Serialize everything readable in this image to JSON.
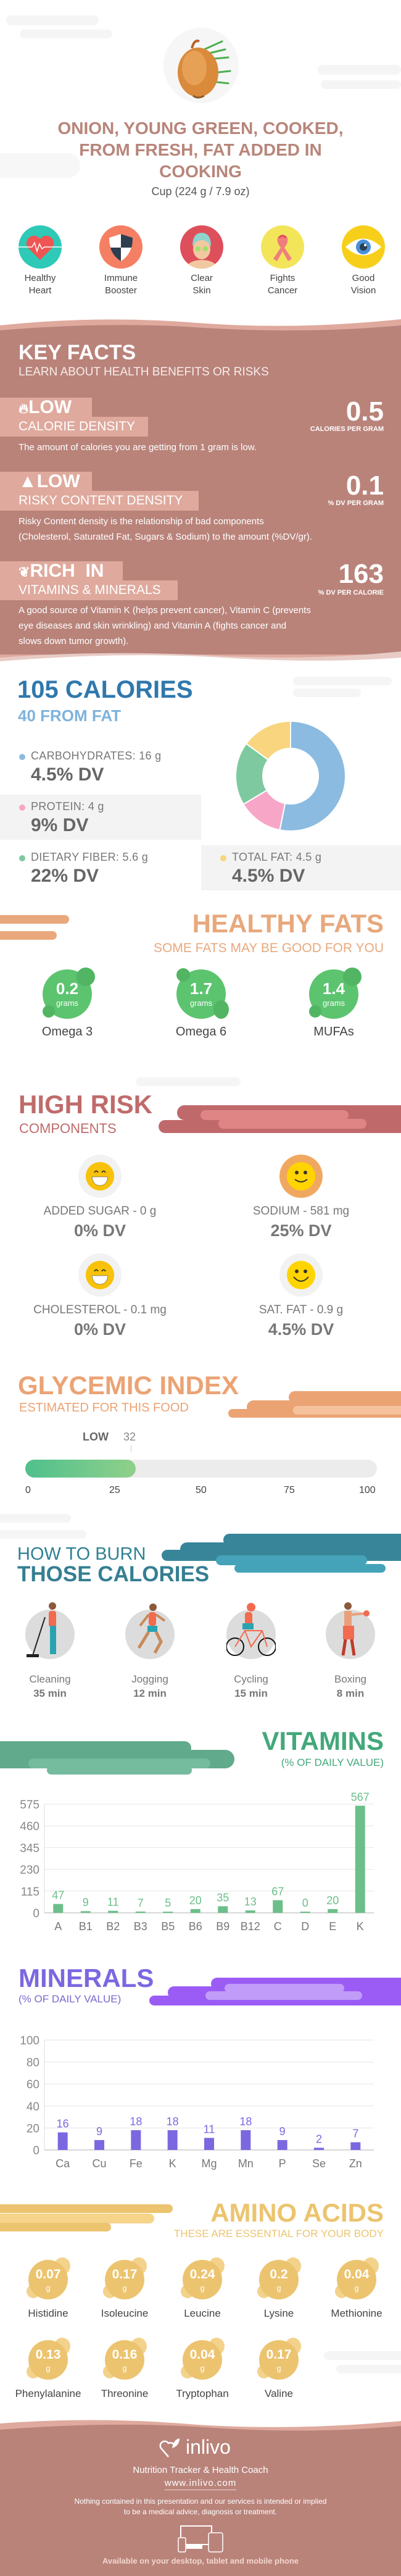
{
  "header": {
    "title_lines": [
      "ONION, YOUNG GREEN, COOKED,",
      "FROM FRESH, FAT ADDED IN",
      "COOKING"
    ],
    "serving": "Cup (224 g / 7.9 oz)"
  },
  "benefits": [
    {
      "line1": "Healthy",
      "line2": "Heart",
      "icon": "heart-icon"
    },
    {
      "line1": "Immune",
      "line2": "Booster",
      "icon": "shield-icon"
    },
    {
      "line1": "Clear",
      "line2": "Skin",
      "icon": "face-mask-icon"
    },
    {
      "line1": "Fights",
      "line2": "Cancer",
      "icon": "ribbon-icon"
    },
    {
      "line1": "Good",
      "line2": "Vision",
      "icon": "eye-icon"
    }
  ],
  "key_facts": {
    "title": "KEY FACTS",
    "subtitle": "LEARN ABOUT HEALTH BENEFITS OR RISKS",
    "items": [
      {
        "level": "LOW",
        "category": "CALORIE DENSITY",
        "value": "0.5",
        "unit": "CALORIES PER GRAM",
        "icon": "flame-icon",
        "description": [
          "The amount of calories you are getting from 1 gram is low."
        ]
      },
      {
        "level": "LOW",
        "category": "RISKY CONTENT DENSITY",
        "value": "0.1",
        "unit": "% DV PER GRAM",
        "icon": "warning-icon",
        "description": [
          "Risky Content density is the relationship of bad components",
          "(Cholesterol, Saturated Fat, Sugars & Sodium) to the amount (%DV/gr)."
        ]
      },
      {
        "level": "RICH  IN",
        "category": "VITAMINS & MINERALS",
        "value": "163",
        "unit": "% DV PER CALORIE",
        "icon": "leaf-icon",
        "description": [
          "A good source of Vitamin K (helps prevent cancer), Vitamin C (prevents",
          "eye diseases and skin wrinkling) and Vitamin A (fights cancer and",
          "slows down tumor growth)."
        ]
      }
    ]
  },
  "calories": {
    "title": "105 CALORIES",
    "from_fat": "40 FROM FAT",
    "macros": [
      {
        "label": "CARBOHYDRATES: 16 g",
        "dv": "4.5% DV",
        "color": "#8bbbe0"
      },
      {
        "label": "PROTEIN: 4 g",
        "dv": "9% DV",
        "color": "#f7a6c8"
      },
      {
        "label": "DIETARY FIBER: 5.6 g",
        "dv": "22% DV",
        "color": "#7ec9a0"
      },
      {
        "label": "TOTAL FAT: 4.5 g",
        "dv": "4.5% DV",
        "color": "#f8d57e"
      }
    ]
  },
  "healthy_fats": {
    "title": "HEALTHY FATS",
    "subtitle": "SOME FATS MAY BE GOOD FOR YOU",
    "items": [
      {
        "value": "0.2",
        "unit": "grams",
        "name": "Omega 3"
      },
      {
        "value": "1.7",
        "unit": "grams",
        "name": "Omega 6"
      },
      {
        "value": "1.4",
        "unit": "grams",
        "name": "MUFAs"
      }
    ]
  },
  "high_risk": {
    "title": "HIGH RISK",
    "subtitle": "COMPONENTS",
    "items": [
      {
        "label": "ADDED SUGAR - 0 g",
        "dv": "0% DV",
        "icon": "grinning-face-icon"
      },
      {
        "label": "SODIUM - 581 mg",
        "dv": "25% DV",
        "icon": "smiling-face-icon"
      },
      {
        "label": "CHOLESTEROL - 0.1 mg",
        "dv": "0% DV",
        "icon": "grinning-face-icon"
      },
      {
        "label": "SAT. FAT - 0.9 g",
        "dv": "4.5% DV",
        "icon": "smiling-face-icon"
      }
    ]
  },
  "glycemic": {
    "title": "GLYCEMIC INDEX",
    "subtitle": "ESTIMATED FOR THIS FOOD",
    "level": "LOW",
    "value": 32,
    "value_label": "32",
    "scale": [
      "0",
      "25",
      "50",
      "75",
      "100"
    ]
  },
  "burn": {
    "title_top": "HOW TO BURN",
    "title_bottom": "THOSE CALORIES",
    "activities": [
      {
        "name": "Cleaning",
        "time": "35 min"
      },
      {
        "name": "Jogging",
        "time": "12 min"
      },
      {
        "name": "Cycling",
        "time": "15 min"
      },
      {
        "name": "Boxing",
        "time": "8 min"
      }
    ]
  },
  "vitamins": {
    "title": "VITAMINS",
    "subtitle": "(% OF DAILY VALUE)"
  },
  "minerals": {
    "title": "MINERALS",
    "subtitle": "(% OF DAILY VALUE)"
  },
  "amino_acids": {
    "title": "AMINO ACIDS",
    "subtitle": "THESE ARE ESSENTIAL FOR YOUR BODY",
    "items": [
      {
        "value": "0.07",
        "unit": "g",
        "name": "Histidine"
      },
      {
        "value": "0.17",
        "unit": "g",
        "name": "Isoleucine"
      },
      {
        "value": "0.24",
        "unit": "g",
        "name": "Leucine"
      },
      {
        "value": "0.2",
        "unit": "g",
        "name": "Lysine"
      },
      {
        "value": "0.04",
        "unit": "g",
        "name": "Methionine"
      },
      {
        "value": "0.13",
        "unit": "g",
        "name": "Phenylalanine"
      },
      {
        "value": "0.16",
        "unit": "g",
        "name": "Threonine"
      },
      {
        "value": "0.04",
        "unit": "g",
        "name": "Tryptophan"
      },
      {
        "value": "0.17",
        "unit": "g",
        "name": "Valine"
      }
    ]
  },
  "footer": {
    "brand": "inlivo",
    "tagline": "Nutrition Tracker & Health Coach",
    "website": "www.inlivo.com",
    "disclaimer": [
      "Nothing contained in this presentation and our services is intended or implied",
      "to be a medical advice, diagnosis or treatment."
    ],
    "availability": "Available on your desktop, tablet and mobile phone"
  },
  "colors": {
    "brand_brown": "#b9837a",
    "brand_pink": "#dfa99d",
    "calories_blue": "#2f78ad",
    "fats_orange": "#e8a87c",
    "risk_red": "#bf6b6b",
    "glycemic_orange": "#eba374",
    "burn_teal": "#357f92",
    "vitamins_green": "#43a87a",
    "minerals_purple": "#7b68e0",
    "amino_yellow": "#ecc46f"
  },
  "chart_data": [
    {
      "type": "pie",
      "series": [
        {
          "values": [
            16,
            4,
            5.6,
            4.5
          ]
        }
      ],
      "colors": [
        "#8bbbe0",
        "#f7a6c8",
        "#7ec9a0",
        "#f8d57e"
      ],
      "donut": true
    },
    {
      "type": "bar",
      "categories": [
        "A",
        "B1",
        "B2",
        "B3",
        "B5",
        "B6",
        "B9",
        "B12",
        "C",
        "D",
        "E",
        "K"
      ],
      "values": [
        47,
        9,
        11,
        7,
        5,
        20,
        35,
        13,
        67,
        0,
        20,
        567
      ],
      "ylim": [
        0,
        575
      ],
      "yticks": [
        0,
        115,
        230,
        345,
        460,
        575
      ],
      "color": "#6cbf8a",
      "grid": true
    },
    {
      "type": "bar",
      "categories": [
        "Ca",
        "Cu",
        "Fe",
        "K",
        "Mg",
        "Mn",
        "P",
        "Se",
        "Zn"
      ],
      "values": [
        16,
        9,
        18,
        18,
        11,
        18,
        9,
        2,
        7
      ],
      "ylim": [
        0,
        100
      ],
      "yticks": [
        0,
        20,
        40,
        60,
        80,
        100
      ],
      "color": "#7b68e0",
      "grid": true
    }
  ]
}
